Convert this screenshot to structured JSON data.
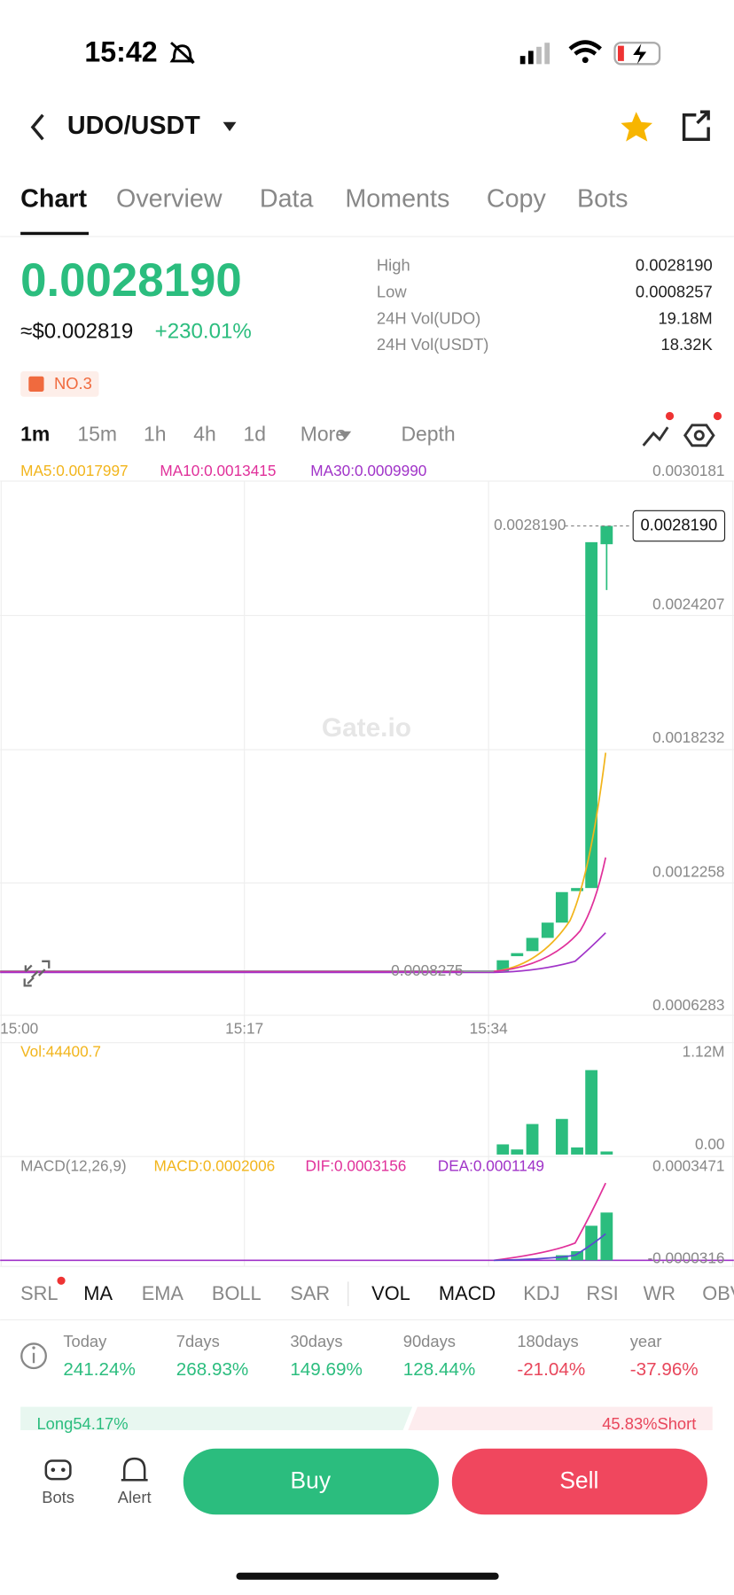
{
  "status": {
    "time": "15:42"
  },
  "header": {
    "pair": "UDO/USDT"
  },
  "tabs": [
    "Chart",
    "Overview",
    "Data",
    "Moments",
    "Copy",
    "Bots"
  ],
  "price": {
    "last": "0.0028190",
    "approx": "≈$0.002819",
    "change": "+230.01%",
    "rank": "NO.3"
  },
  "stats": [
    {
      "label": "High",
      "value": "0.0028190"
    },
    {
      "label": "Low",
      "value": "0.0008257"
    },
    {
      "label": "24H Vol(UDO)",
      "value": "19.18M"
    },
    {
      "label": "24H Vol(USDT)",
      "value": "18.32K"
    }
  ],
  "intervals": [
    "1m",
    "15m",
    "1h",
    "4h",
    "1d",
    "More",
    "Depth"
  ],
  "ma": [
    "MA5:0.0017997",
    "MA10:0.0013415",
    "MA30:0.0009990"
  ],
  "price_axis": [
    "0.0030181",
    "0.0024207",
    "0.0018232",
    "0.0012258",
    "0.0006283"
  ],
  "last_price_tag": "0.0028190",
  "high_marker": "0.0028190",
  "low_marker": "0.0008275",
  "watermark": "Gate.io",
  "time_axis": [
    "15:00",
    "15:17",
    "15:34"
  ],
  "vol": {
    "label": "Vol:44400.7",
    "axis": [
      "1.12M",
      "0.00"
    ]
  },
  "macd": {
    "title": "MACD(12,26,9)",
    "macd": "MACD:0.0002006",
    "dif": "DIF:0.0003156",
    "dea": "DEA:0.0001149",
    "axis": [
      "0.0003471",
      "-0.0000316"
    ]
  },
  "indicators": [
    "SRL",
    "MA",
    "EMA",
    "BOLL",
    "SAR",
    "VOL",
    "MACD",
    "KDJ",
    "RSI",
    "WR",
    "OBV"
  ],
  "performance": [
    {
      "period": "Today",
      "value": "241.24%"
    },
    {
      "period": "7days",
      "value": "268.93%"
    },
    {
      "period": "30days",
      "value": "149.69%"
    },
    {
      "period": "90days",
      "value": "128.44%"
    },
    {
      "period": "180days",
      "value": "-21.04%"
    },
    {
      "period": "year",
      "value": "-37.96%"
    }
  ],
  "sentiment": {
    "long": "Long54.17%",
    "short": "45.83%Short"
  },
  "bottom": {
    "bots": "Bots",
    "alert": "Alert",
    "buy": "Buy",
    "sell": "Sell"
  }
}
